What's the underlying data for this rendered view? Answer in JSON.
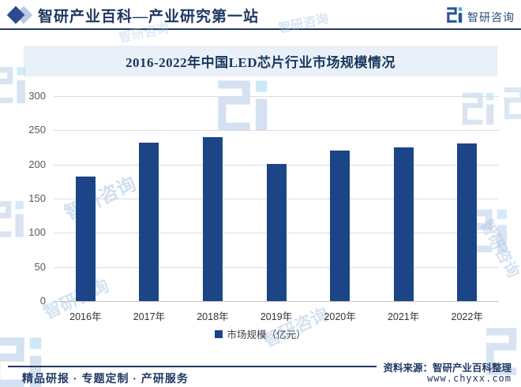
{
  "header": {
    "title": "智研产业百科—产业研究第一站",
    "brand": "智研咨询"
  },
  "chart_data": {
    "type": "bar",
    "title": "2016-2022年中国LED芯片行业市场规模情况",
    "categories": [
      "2016年",
      "2017年",
      "2018年",
      "2019年",
      "2020年",
      "2021年",
      "2022年"
    ],
    "values": [
      182,
      232,
      240,
      201,
      221,
      225,
      231
    ],
    "legend": "市场规模（亿元）",
    "xlabel": "",
    "ylabel": "",
    "ylim": [
      0,
      300
    ],
    "yticks": [
      0,
      50,
      100,
      150,
      200,
      250,
      300
    ],
    "grid": true,
    "legend_position": "bottom",
    "bar_color": "#1c4587"
  },
  "footer": {
    "left": "精品研报 · 专题定制 · 产研服务",
    "source": "资料来源：智研产业百科整理",
    "website": "www.chyxx.com"
  },
  "watermark": {
    "text": "智研咨询"
  },
  "colors": {
    "bar": "#1c4587",
    "banner_bg": "#e9f0f8",
    "navy": "#1f3864",
    "grid": "#dcdcdc"
  }
}
